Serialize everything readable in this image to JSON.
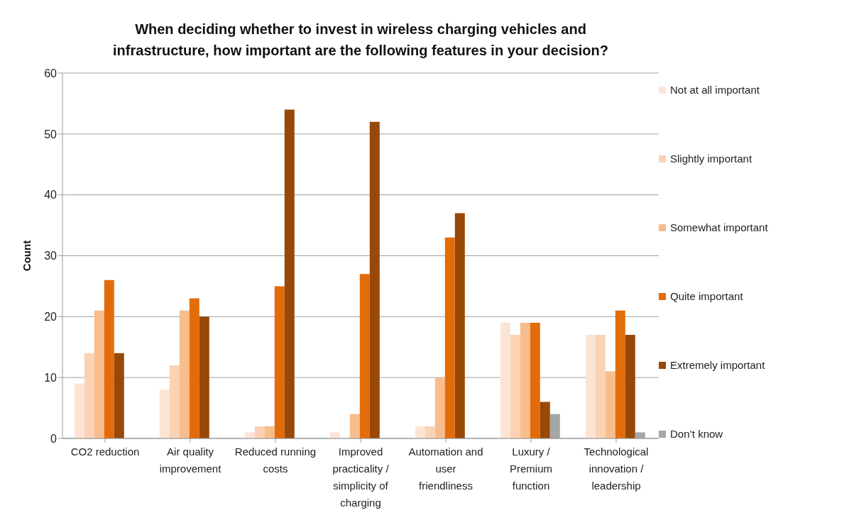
{
  "chart_data": {
    "type": "bar",
    "title": "When deciding whether to invest in wireless charging vehicles and infrastructure, how important are the following features in your decision?",
    "ylabel": "Count",
    "categories": [
      "CO2 reduction",
      "Air quality improvement",
      "Reduced running costs",
      "Improved practicality / simplicity of charging",
      "Automation and user friendliness",
      "Luxury / Premium function",
      "Technological innovation / leadership"
    ],
    "series": [
      {
        "name": "Not at all important",
        "color": "#fce4d4",
        "values": [
          9,
          8,
          1,
          1,
          2,
          19,
          17
        ]
      },
      {
        "name": "Slightly important",
        "color": "#fbd3b4",
        "values": [
          14,
          12,
          2,
          0,
          2,
          17,
          17
        ]
      },
      {
        "name": "Somewhat important",
        "color": "#f8bd8c",
        "values": [
          21,
          21,
          2,
          4,
          10,
          19,
          11
        ]
      },
      {
        "name": "Quite important",
        "color": "#e36c0a",
        "values": [
          26,
          23,
          25,
          27,
          33,
          19,
          21
        ]
      },
      {
        "name": "Extremely important",
        "color": "#984807",
        "values": [
          14,
          20,
          54,
          52,
          37,
          6,
          17
        ]
      },
      {
        "name": "Don’t know",
        "color": "#a6a6a6",
        "values": [
          0,
          0,
          0,
          0,
          0,
          4,
          1
        ]
      }
    ],
    "ylim": [
      0,
      60
    ],
    "yticks": [
      0,
      10,
      20,
      30,
      40,
      50,
      60
    ],
    "grid": "y",
    "legend": "right"
  }
}
